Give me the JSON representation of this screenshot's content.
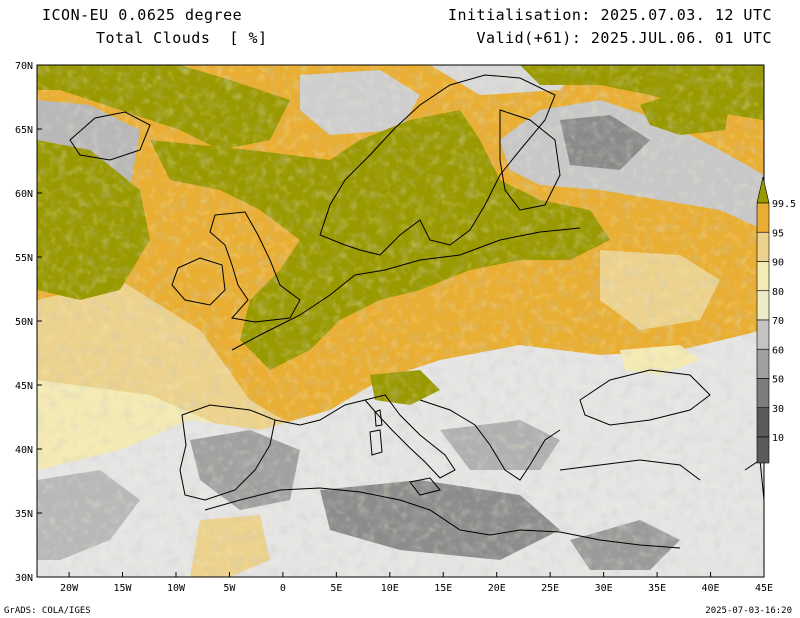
{
  "header": {
    "title_line1": "ICON-EU 0.0625 degree",
    "title_line2": "Total Clouds  [ %]",
    "init": "Initialisation: 2025.07.03. 12 UTC",
    "valid": "Valid(+61): 2025.JUL.06. 01 UTC"
  },
  "footer": {
    "credit": "GrADS: COLA/IGES",
    "timestamp": "2025-07-03-16:20"
  },
  "map": {
    "lon_range": [
      -23,
      45
    ],
    "lat_range": [
      30,
      70
    ],
    "lon_ticks": [
      "20W",
      "15W",
      "10W",
      "5W",
      "0",
      "5E",
      "10E",
      "15E",
      "20E",
      "25E",
      "30E",
      "35E",
      "40E",
      "45E"
    ],
    "lon_tick_values": [
      -20,
      -15,
      -10,
      -5,
      0,
      5,
      10,
      15,
      20,
      25,
      30,
      35,
      40,
      45
    ],
    "lat_ticks": [
      "30N",
      "35N",
      "40N",
      "45N",
      "50N",
      "55N",
      "60N",
      "65N",
      "70N"
    ],
    "lat_tick_values": [
      30,
      35,
      40,
      45,
      50,
      55,
      60,
      65,
      70
    ]
  },
  "colorbar": {
    "labels": [
      "10",
      "30",
      "50",
      "60",
      "70",
      "80",
      "90",
      "95",
      "99.5"
    ],
    "colors": [
      "#5a5a5a",
      "#7d7d7d",
      "#a0a0a0",
      "#c3c3c3",
      "#ececc8",
      "#f3eab4",
      "#ecd28c",
      "#e9ae32",
      "#999900"
    ]
  },
  "fields": {
    "clear_color": "#e5e5e5",
    "overcast_color": "#999900"
  }
}
